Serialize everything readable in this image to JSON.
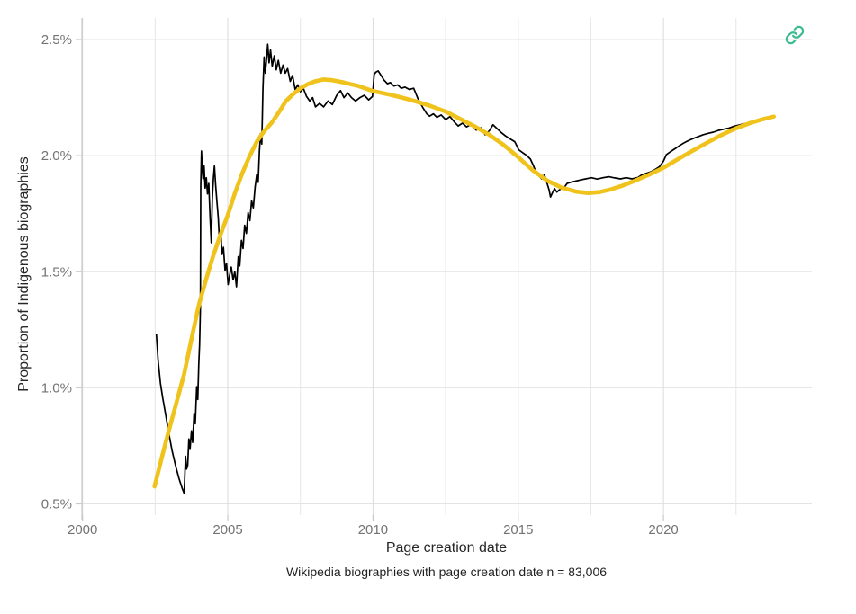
{
  "page": {
    "background": "#ffffff"
  },
  "toolbar": {
    "link_icon_color": "#3bbb8f"
  },
  "chart_data": {
    "type": "line",
    "title": "",
    "xlabel": "Page creation date",
    "ylabel": "Proportion of Indigenous biographies",
    "caption": "Wikipedia biographies with page creation date n = 83,006",
    "xlim": [
      2000,
      2025.1
    ],
    "ylim": [
      0.45,
      2.6
    ],
    "grid": true,
    "legend_position": "none",
    "x_ticks": [
      {
        "value": 2000,
        "label": "2000"
      },
      {
        "value": 2005,
        "label": "2005"
      },
      {
        "value": 2010,
        "label": "2010"
      },
      {
        "value": 2015,
        "label": "2015"
      },
      {
        "value": 2020,
        "label": "2020"
      }
    ],
    "x_minor_ticks": [
      2002.5,
      2007.5,
      2012.5,
      2017.5,
      2022.5
    ],
    "y_ticks": [
      {
        "value": 0.5,
        "label": "0.5%"
      },
      {
        "value": 1.0,
        "label": "1.0%"
      },
      {
        "value": 1.5,
        "label": "1.5%"
      },
      {
        "value": 2.0,
        "label": "2.0%"
      },
      {
        "value": 2.5,
        "label": "2.5%"
      }
    ],
    "colors": {
      "grid_major": "#dadada",
      "grid_minor": "#e6e6e6",
      "grid_horizontal": "#e3e3e3",
      "axis_line": "#c9c9c9",
      "tick_text": "#737373"
    },
    "series": [
      {
        "name": "observed-proportion",
        "color": "#000000",
        "width": 1.7,
        "points": [
          [
            2002.54,
            1.23
          ],
          [
            2002.6,
            1.12
          ],
          [
            2002.68,
            1.02
          ],
          [
            2002.76,
            0.955
          ],
          [
            2002.86,
            0.885
          ],
          [
            2002.97,
            0.805
          ],
          [
            2003.08,
            0.73
          ],
          [
            2003.2,
            0.665
          ],
          [
            2003.32,
            0.61
          ],
          [
            2003.42,
            0.57
          ],
          [
            2003.5,
            0.545
          ],
          [
            2003.545,
            0.705
          ],
          [
            2003.58,
            0.65
          ],
          [
            2003.62,
            0.665
          ],
          [
            2003.66,
            0.78
          ],
          [
            2003.7,
            0.735
          ],
          [
            2003.75,
            0.815
          ],
          [
            2003.79,
            0.765
          ],
          [
            2003.84,
            0.89
          ],
          [
            2003.88,
            0.845
          ],
          [
            2003.93,
            1.005
          ],
          [
            2003.965,
            0.95
          ],
          [
            2004.0,
            1.1
          ],
          [
            2004.03,
            1.185
          ],
          [
            2004.055,
            1.34
          ],
          [
            2004.07,
            1.87
          ],
          [
            2004.095,
            2.02
          ],
          [
            2004.12,
            1.945
          ],
          [
            2004.15,
            1.9
          ],
          [
            2004.185,
            1.955
          ],
          [
            2004.22,
            1.86
          ],
          [
            2004.26,
            1.905
          ],
          [
            2004.3,
            1.835
          ],
          [
            2004.345,
            1.88
          ],
          [
            2004.39,
            1.73
          ],
          [
            2004.43,
            1.625
          ],
          [
            2004.47,
            1.82
          ],
          [
            2004.505,
            1.905
          ],
          [
            2004.54,
            1.955
          ],
          [
            2004.58,
            1.875
          ],
          [
            2004.625,
            1.805
          ],
          [
            2004.67,
            1.735
          ],
          [
            2004.71,
            1.64
          ],
          [
            2004.755,
            1.675
          ],
          [
            2004.8,
            1.575
          ],
          [
            2004.85,
            1.605
          ],
          [
            2004.905,
            1.505
          ],
          [
            2004.955,
            1.535
          ],
          [
            2005.01,
            1.445
          ],
          [
            2005.065,
            1.485
          ],
          [
            2005.12,
            1.52
          ],
          [
            2005.18,
            1.465
          ],
          [
            2005.24,
            1.5
          ],
          [
            2005.3,
            1.435
          ],
          [
            2005.36,
            1.565
          ],
          [
            2005.41,
            1.525
          ],
          [
            2005.47,
            1.635
          ],
          [
            2005.525,
            1.6
          ],
          [
            2005.58,
            1.7
          ],
          [
            2005.64,
            1.665
          ],
          [
            2005.7,
            1.755
          ],
          [
            2005.76,
            1.72
          ],
          [
            2005.82,
            1.805
          ],
          [
            2005.88,
            1.775
          ],
          [
            2005.94,
            1.865
          ],
          [
            2006.0,
            1.92
          ],
          [
            2006.045,
            1.885
          ],
          [
            2006.09,
            2.02
          ],
          [
            2006.13,
            2.095
          ],
          [
            2006.17,
            2.05
          ],
          [
            2006.21,
            2.29
          ],
          [
            2006.25,
            2.425
          ],
          [
            2006.29,
            2.355
          ],
          [
            2006.33,
            2.41
          ],
          [
            2006.375,
            2.48
          ],
          [
            2006.42,
            2.4
          ],
          [
            2006.47,
            2.455
          ],
          [
            2006.53,
            2.385
          ],
          [
            2006.6,
            2.43
          ],
          [
            2006.67,
            2.37
          ],
          [
            2006.74,
            2.41
          ],
          [
            2006.82,
            2.355
          ],
          [
            2006.9,
            2.39
          ],
          [
            2006.98,
            2.355
          ],
          [
            2007.06,
            2.375
          ],
          [
            2007.15,
            2.32
          ],
          [
            2007.23,
            2.345
          ],
          [
            2007.32,
            2.285
          ],
          [
            2007.41,
            2.305
          ],
          [
            2007.5,
            2.275
          ],
          [
            2007.6,
            2.29
          ],
          [
            2007.71,
            2.255
          ],
          [
            2007.82,
            2.235
          ],
          [
            2007.92,
            2.25
          ],
          [
            2008.02,
            2.21
          ],
          [
            2008.16,
            2.225
          ],
          [
            2008.3,
            2.21
          ],
          [
            2008.45,
            2.235
          ],
          [
            2008.6,
            2.22
          ],
          [
            2008.75,
            2.26
          ],
          [
            2008.88,
            2.28
          ],
          [
            2009.0,
            2.25
          ],
          [
            2009.13,
            2.27
          ],
          [
            2009.26,
            2.25
          ],
          [
            2009.4,
            2.235
          ],
          [
            2009.55,
            2.25
          ],
          [
            2009.7,
            2.26
          ],
          [
            2009.85,
            2.24
          ],
          [
            2009.98,
            2.255
          ],
          [
            2010.04,
            2.35
          ],
          [
            2010.1,
            2.36
          ],
          [
            2010.18,
            2.365
          ],
          [
            2010.28,
            2.345
          ],
          [
            2010.38,
            2.325
          ],
          [
            2010.5,
            2.31
          ],
          [
            2010.6,
            2.315
          ],
          [
            2010.72,
            2.3
          ],
          [
            2010.85,
            2.305
          ],
          [
            2010.97,
            2.29
          ],
          [
            2011.1,
            2.295
          ],
          [
            2011.25,
            2.285
          ],
          [
            2011.4,
            2.29
          ],
          [
            2011.55,
            2.245
          ],
          [
            2011.7,
            2.21
          ],
          [
            2011.85,
            2.18
          ],
          [
            2011.95,
            2.17
          ],
          [
            2012.08,
            2.18
          ],
          [
            2012.2,
            2.165
          ],
          [
            2012.35,
            2.175
          ],
          [
            2012.5,
            2.155
          ],
          [
            2012.65,
            2.168
          ],
          [
            2012.8,
            2.145
          ],
          [
            2012.93,
            2.128
          ],
          [
            2013.08,
            2.14
          ],
          [
            2013.22,
            2.124
          ],
          [
            2013.38,
            2.134
          ],
          [
            2013.55,
            2.11
          ],
          [
            2013.71,
            2.12
          ],
          [
            2013.86,
            2.09
          ],
          [
            2014.01,
            2.108
          ],
          [
            2014.13,
            2.133
          ],
          [
            2014.26,
            2.118
          ],
          [
            2014.41,
            2.1
          ],
          [
            2014.56,
            2.085
          ],
          [
            2014.72,
            2.072
          ],
          [
            2014.88,
            2.06
          ],
          [
            2015.02,
            2.025
          ],
          [
            2015.16,
            2.012
          ],
          [
            2015.3,
            2.0
          ],
          [
            2015.42,
            1.985
          ],
          [
            2015.52,
            1.958
          ],
          [
            2015.61,
            1.93
          ],
          [
            2015.71,
            1.913
          ],
          [
            2015.81,
            1.9
          ],
          [
            2015.9,
            1.918
          ],
          [
            2016.0,
            1.878
          ],
          [
            2016.06,
            1.853
          ],
          [
            2016.11,
            1.822
          ],
          [
            2016.18,
            1.84
          ],
          [
            2016.25,
            1.858
          ],
          [
            2016.33,
            1.843
          ],
          [
            2016.41,
            1.852
          ],
          [
            2016.49,
            1.858
          ],
          [
            2016.58,
            1.862
          ],
          [
            2016.68,
            1.88
          ],
          [
            2016.83,
            1.886
          ],
          [
            2016.98,
            1.89
          ],
          [
            2017.14,
            1.895
          ],
          [
            2017.32,
            1.9
          ],
          [
            2017.52,
            1.905
          ],
          [
            2017.72,
            1.899
          ],
          [
            2017.92,
            1.905
          ],
          [
            2018.12,
            1.909
          ],
          [
            2018.32,
            1.904
          ],
          [
            2018.52,
            1.9
          ],
          [
            2018.72,
            1.905
          ],
          [
            2018.92,
            1.9
          ],
          [
            2019.12,
            1.906
          ],
          [
            2019.26,
            1.918
          ],
          [
            2019.41,
            1.924
          ],
          [
            2019.56,
            1.93
          ],
          [
            2019.71,
            1.94
          ],
          [
            2019.86,
            1.952
          ],
          [
            2020.0,
            1.976
          ],
          [
            2020.1,
            2.004
          ],
          [
            2020.25,
            2.018
          ],
          [
            2020.4,
            2.03
          ],
          [
            2020.56,
            2.044
          ],
          [
            2020.72,
            2.056
          ],
          [
            2020.88,
            2.066
          ],
          [
            2021.04,
            2.075
          ],
          [
            2021.2,
            2.082
          ],
          [
            2021.36,
            2.09
          ],
          [
            2021.54,
            2.096
          ],
          [
            2021.72,
            2.101
          ],
          [
            2021.9,
            2.109
          ],
          [
            2022.08,
            2.114
          ],
          [
            2022.26,
            2.119
          ],
          [
            2022.44,
            2.127
          ],
          [
            2022.62,
            2.132
          ],
          [
            2022.8,
            2.138
          ],
          [
            2022.98,
            2.139
          ],
          [
            2023.16,
            2.143
          ],
          [
            2023.34,
            2.15
          ],
          [
            2023.52,
            2.155
          ],
          [
            2023.66,
            2.16
          ],
          [
            2023.8,
            2.168
          ]
        ]
      },
      {
        "name": "smoothed-trend",
        "color": "#efc31b",
        "width": 4.6,
        "points": [
          [
            2002.48,
            0.575
          ],
          [
            2002.75,
            0.71
          ],
          [
            2003.0,
            0.83
          ],
          [
            2003.25,
            0.945
          ],
          [
            2003.5,
            1.06
          ],
          [
            2003.75,
            1.21
          ],
          [
            2004.0,
            1.355
          ],
          [
            2004.25,
            1.465
          ],
          [
            2004.5,
            1.57
          ],
          [
            2004.75,
            1.66
          ],
          [
            2005.0,
            1.745
          ],
          [
            2005.25,
            1.84
          ],
          [
            2005.5,
            1.925
          ],
          [
            2005.75,
            1.998
          ],
          [
            2006.0,
            2.06
          ],
          [
            2006.25,
            2.105
          ],
          [
            2006.5,
            2.14
          ],
          [
            2006.75,
            2.185
          ],
          [
            2007.0,
            2.235
          ],
          [
            2007.25,
            2.265
          ],
          [
            2007.5,
            2.29
          ],
          [
            2007.75,
            2.308
          ],
          [
            2008.0,
            2.32
          ],
          [
            2008.3,
            2.328
          ],
          [
            2008.6,
            2.325
          ],
          [
            2009.0,
            2.315
          ],
          [
            2009.5,
            2.3
          ],
          [
            2010.0,
            2.278
          ],
          [
            2010.5,
            2.265
          ],
          [
            2011.0,
            2.25
          ],
          [
            2011.5,
            2.233
          ],
          [
            2012.0,
            2.213
          ],
          [
            2012.5,
            2.19
          ],
          [
            2013.0,
            2.158
          ],
          [
            2013.5,
            2.126
          ],
          [
            2014.0,
            2.09
          ],
          [
            2014.5,
            2.046
          ],
          [
            2015.0,
            1.993
          ],
          [
            2015.5,
            1.937
          ],
          [
            2016.0,
            1.892
          ],
          [
            2016.5,
            1.862
          ],
          [
            2017.0,
            1.845
          ],
          [
            2017.4,
            1.839
          ],
          [
            2017.8,
            1.843
          ],
          [
            2018.2,
            1.855
          ],
          [
            2018.6,
            1.871
          ],
          [
            2019.0,
            1.891
          ],
          [
            2019.5,
            1.918
          ],
          [
            2020.0,
            1.948
          ],
          [
            2020.5,
            1.985
          ],
          [
            2021.0,
            2.021
          ],
          [
            2021.5,
            2.056
          ],
          [
            2022.0,
            2.089
          ],
          [
            2022.5,
            2.118
          ],
          [
            2023.0,
            2.141
          ],
          [
            2023.4,
            2.156
          ],
          [
            2023.8,
            2.168
          ]
        ]
      }
    ]
  }
}
